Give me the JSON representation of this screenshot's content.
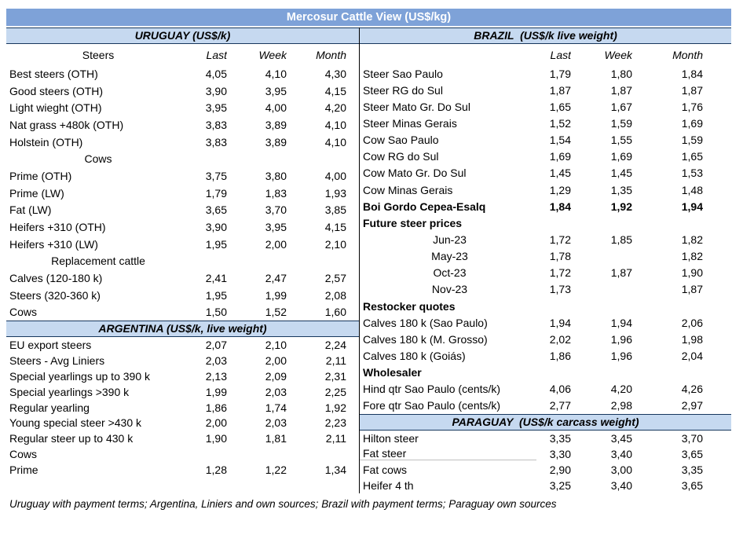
{
  "title": "Mercosur Cattle View (US$/kg)",
  "left": {
    "uruguay": {
      "header": "URUGUAY (US$/k)",
      "col_label": "Steers",
      "columns": [
        "Last",
        "Week",
        "Month"
      ],
      "rows": [
        {
          "label": "Best steers (OTH)",
          "v": [
            "4,05",
            "4,10",
            "4,30"
          ]
        },
        {
          "label": "Good steers (OTH)",
          "v": [
            "3,90",
            "3,95",
            "4,15"
          ]
        },
        {
          "label": "Light wieght (OTH)",
          "v": [
            "3,95",
            "4,00",
            "4,20"
          ]
        },
        {
          "label": "Nat grass +480k (OTH)",
          "v": [
            "3,83",
            "3,89",
            "4,10"
          ]
        },
        {
          "label": "Holstein (OTH)",
          "v": [
            "3,83",
            "3,89",
            "4,10"
          ]
        },
        {
          "label": "Cows",
          "type": "sub"
        },
        {
          "label": "Prime (OTH)",
          "v": [
            "3,75",
            "3,80",
            "4,00"
          ]
        },
        {
          "label": "Prime (LW)",
          "v": [
            "1,79",
            "1,83",
            "1,93"
          ]
        },
        {
          "label": "Fat (LW)",
          "v": [
            "3,65",
            "3,70",
            "3,85"
          ]
        },
        {
          "label": "Heifers +310 (OTH)",
          "v": [
            "3,90",
            "3,95",
            "4,15"
          ]
        },
        {
          "label": "Heifers +310 (LW)",
          "v": [
            "1,95",
            "2,00",
            "2,10"
          ]
        },
        {
          "label": "Replacement cattle",
          "type": "sub"
        },
        {
          "label": "Calves (120-180 k)",
          "v": [
            "2,41",
            "2,47",
            "2,57"
          ]
        },
        {
          "label": "Steers (320-360 k)",
          "v": [
            "1,95",
            "1,99",
            "2,08"
          ]
        },
        {
          "label": "Cows",
          "v": [
            "1,50",
            "1,52",
            "1,60"
          ]
        }
      ]
    },
    "argentina": {
      "header": "ARGENTINA (US$/k, live weight)",
      "rows": [
        {
          "label": "EU export steers",
          "v": [
            "2,07",
            "2,10",
            "2,24"
          ]
        },
        {
          "label": "Steers - Avg Liniers",
          "v": [
            "2,03",
            "2,00",
            "2,11"
          ]
        },
        {
          "label": "Special yearlings up to 390 k",
          "v": [
            "2,13",
            "2,09",
            "2,31"
          ]
        },
        {
          "label": "Special yearlings >390 k",
          "v": [
            "1,99",
            "2,03",
            "2,25"
          ]
        },
        {
          "label": "Regular yearling",
          "v": [
            "1,86",
            "1,74",
            "1,92"
          ]
        },
        {
          "label": "Young special steer >430 k",
          "v": [
            "2,00",
            "2,03",
            "2,23"
          ]
        },
        {
          "label": "Regular steer up to 430 k",
          "v": [
            "1,90",
            "1,81",
            "2,11"
          ]
        },
        {
          "label": "Cows"
        },
        {
          "label": "Prime",
          "v": [
            "1,28",
            "1,22",
            "1,34"
          ]
        }
      ]
    }
  },
  "right": {
    "brazil": {
      "header": "BRAZIL  (US$/k live weight)",
      "columns": [
        "Last",
        "Week",
        "Month"
      ],
      "rows": [
        {
          "label": "Steer Sao Paulo",
          "v": [
            "1,79",
            "1,80",
            "1,84"
          ]
        },
        {
          "label": "Steer RG do Sul",
          "v": [
            "1,87",
            "1,87",
            "1,87"
          ]
        },
        {
          "label": "Steer Mato Gr. Do Sul",
          "v": [
            "1,65",
            "1,67",
            "1,76"
          ]
        },
        {
          "label": "Steer Minas Gerais",
          "v": [
            "1,52",
            "1,59",
            "1,69"
          ]
        },
        {
          "label": "Cow Sao Paulo",
          "v": [
            "1,54",
            "1,55",
            "1,59"
          ]
        },
        {
          "label": "Cow RG do Sul",
          "v": [
            "1,69",
            "1,69",
            "1,65"
          ]
        },
        {
          "label": "Cow Mato Gr. Do Sul",
          "v": [
            "1,45",
            "1,45",
            "1,53"
          ]
        },
        {
          "label": "Cow Minas Gerais",
          "v": [
            "1,29",
            "1,35",
            "1,48"
          ]
        },
        {
          "label": "Boi Gordo Cepea-Esalq",
          "v": [
            "1,84",
            "1,92",
            "1,94"
          ],
          "type": "bold"
        },
        {
          "label": "Future steer prices",
          "type": "bold"
        },
        {
          "label": "Jun-23",
          "v": [
            "1,72",
            "1,85",
            "1,82"
          ],
          "type": "sub"
        },
        {
          "label": "May-23",
          "v": [
            "1,78",
            "",
            "1,82"
          ],
          "type": "sub"
        },
        {
          "label": "Oct-23",
          "v": [
            "1,72",
            "1,87",
            "1,90"
          ],
          "type": "sub"
        },
        {
          "label": "Nov-23",
          "v": [
            "1,73",
            "",
            "1,87"
          ],
          "type": "sub"
        },
        {
          "label": "Restocker quotes",
          "type": "bold"
        },
        {
          "label": "Calves 180 k (Sao Paulo)",
          "v": [
            "1,94",
            "1,94",
            "2,06"
          ]
        },
        {
          "label": "Calves 180 k (M. Grosso)",
          "v": [
            "2,02",
            "1,96",
            "1,98"
          ]
        },
        {
          "label": "Calves 180 k (Goiás)",
          "v": [
            "1,86",
            "1,96",
            "2,04"
          ]
        },
        {
          "label": "Wholesaler",
          "type": "bold"
        },
        {
          "label": "Hind qtr Sao Paulo (cents/k)",
          "v": [
            "4,06",
            "4,20",
            "4,26"
          ]
        },
        {
          "label": "Fore qtr Sao Paulo (cents/k)",
          "v": [
            "2,77",
            "2,98",
            "2,97"
          ]
        }
      ]
    },
    "paraguay": {
      "header": "PARAGUAY  (US$/k carcass weight)",
      "rows": [
        {
          "label": "Hilton steer",
          "v": [
            "3,35",
            "3,45",
            "3,70"
          ]
        },
        {
          "label": "Fat steer",
          "v": [
            "3,30",
            "3,40",
            "3,65"
          ],
          "underline": true
        },
        {
          "label": "Fat cows",
          "v": [
            "2,90",
            "3,00",
            "3,35"
          ]
        },
        {
          "label": "Heifer 4 th",
          "v": [
            "3,25",
            "3,40",
            "3,65"
          ]
        }
      ]
    }
  },
  "footnote": "Uruguay with payment terms; Argentina, Liniers and own sources; Brazil with payment terms; Paraguay own sources"
}
